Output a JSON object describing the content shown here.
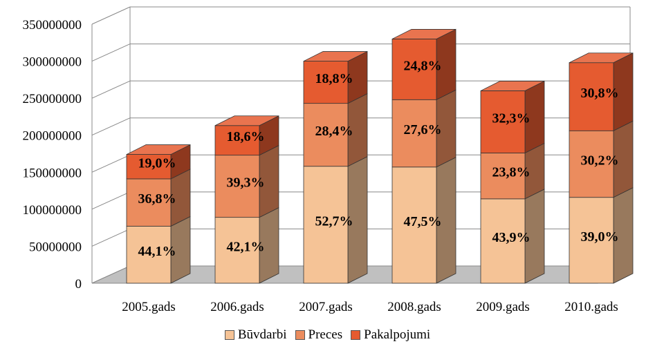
{
  "chart_data": {
    "type": "bar",
    "stacked": true,
    "three_d": true,
    "categories": [
      "2005.gads",
      "2006.gads",
      "2007.gads",
      "2008.gads",
      "2009.gads",
      "2010.gads"
    ],
    "series": [
      {
        "name": "Būvdarbi",
        "color": "#F5C396",
        "values": [
          77000000,
          89000000,
          158000000,
          157000000,
          114000000,
          116000000
        ],
        "labels": [
          "44,1%",
          "42,1%",
          "52,7%",
          "47,5%",
          "43,9%",
          "39,0%"
        ]
      },
      {
        "name": "Preces",
        "color": "#EB8C5E",
        "values": [
          64000000,
          84000000,
          85000000,
          91000000,
          62000000,
          90000000
        ],
        "labels": [
          "36,8%",
          "39,3%",
          "28,4%",
          "27,6%",
          "23,8%",
          "30,2%"
        ]
      },
      {
        "name": "Pakalpojumi",
        "color": "#E55B30",
        "values": [
          33000000,
          40000000,
          57000000,
          82000000,
          84000000,
          92000000
        ],
        "labels": [
          "19,0%",
          "18,6%",
          "18,8%",
          "24,8%",
          "32,3%",
          "30,8%"
        ]
      }
    ],
    "ylim": [
      0,
      350000000
    ],
    "yticks": [
      "0",
      "50000000",
      "100000000",
      "150000000",
      "200000000",
      "250000000",
      "300000000",
      "350000000"
    ],
    "grid": true,
    "legend_position": "bottom"
  }
}
